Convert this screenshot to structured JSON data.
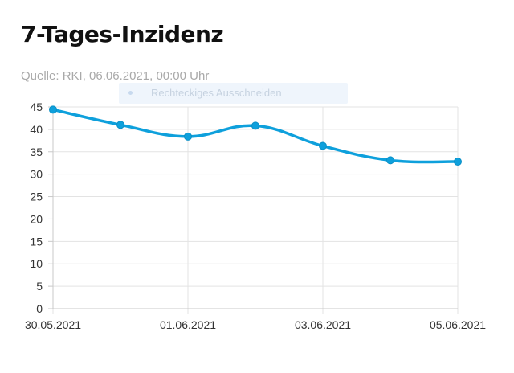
{
  "title": "7-Tages-Inzidenz",
  "source": "Quelle: RKI, 06.06.2021, 00:00 Uhr",
  "overlay": {
    "label": "Rechteckiges Ausschneiden"
  },
  "colors": {
    "line": "#0ea0dc",
    "grid": "#e3e3e3",
    "axis": "#c9c9c9",
    "text": "#333333"
  },
  "chart_data": {
    "type": "line",
    "x": [
      "30.05.2021",
      "31.05.2021",
      "01.06.2021",
      "02.06.2021",
      "03.06.2021",
      "04.06.2021",
      "05.06.2021"
    ],
    "series": [
      {
        "values": [
          44.4,
          41.0,
          38.4,
          40.8,
          36.3,
          33.1,
          32.8
        ]
      }
    ],
    "x_tick_labels": [
      "30.05.2021",
      "01.06.2021",
      "03.06.2021",
      "05.06.2021"
    ],
    "y_ticks": [
      0,
      5,
      10,
      15,
      20,
      25,
      30,
      35,
      40,
      45
    ],
    "ylim": [
      0,
      45
    ],
    "grid": true
  }
}
